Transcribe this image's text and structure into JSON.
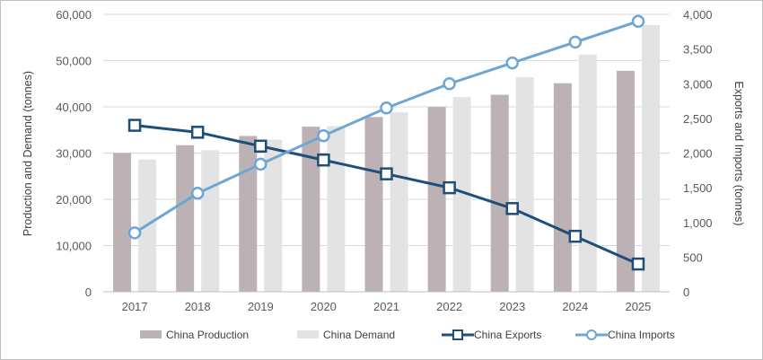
{
  "chart_data": {
    "type": "bar",
    "title": "",
    "categories": [
      "2017",
      "2018",
      "2019",
      "2020",
      "2021",
      "2022",
      "2023",
      "2024",
      "2025"
    ],
    "series": [
      {
        "name": "China Production",
        "type": "bar",
        "axis": "left",
        "color": "#bcb2b5",
        "values": [
          30000,
          31700,
          33700,
          35700,
          37800,
          40000,
          42600,
          45100,
          47800
        ]
      },
      {
        "name": "China Demand",
        "type": "bar",
        "axis": "left",
        "color": "#e3e3e3",
        "values": [
          28600,
          30600,
          32900,
          35800,
          38800,
          42100,
          46400,
          51300,
          57700
        ]
      },
      {
        "name": "China Exports",
        "type": "line",
        "axis": "right",
        "color": "#1f4e79",
        "marker": "square",
        "values": [
          2400,
          2300,
          2100,
          1900,
          1700,
          1500,
          1200,
          800,
          400
        ]
      },
      {
        "name": "China Imports",
        "type": "line",
        "axis": "right",
        "color": "#6ea6d3",
        "marker": "circle",
        "values": [
          850,
          1420,
          1840,
          2250,
          2650,
          3000,
          3300,
          3600,
          3900
        ]
      }
    ],
    "ylabel": "Production and Demand (tonnes)",
    "y2label": "Exports and Imports (tonnes)",
    "ylim": [
      0,
      60000
    ],
    "y2lim": [
      0,
      4000
    ],
    "yticks": [
      "0",
      "10,000",
      "20,000",
      "30,000",
      "40,000",
      "50,000",
      "60,000"
    ],
    "y2ticks": [
      "0",
      "500",
      "1,000",
      "1,500",
      "2,000",
      "2,500",
      "3,000",
      "3,500",
      "4,000"
    ],
    "grid": true,
    "legend_position": "bottom"
  }
}
